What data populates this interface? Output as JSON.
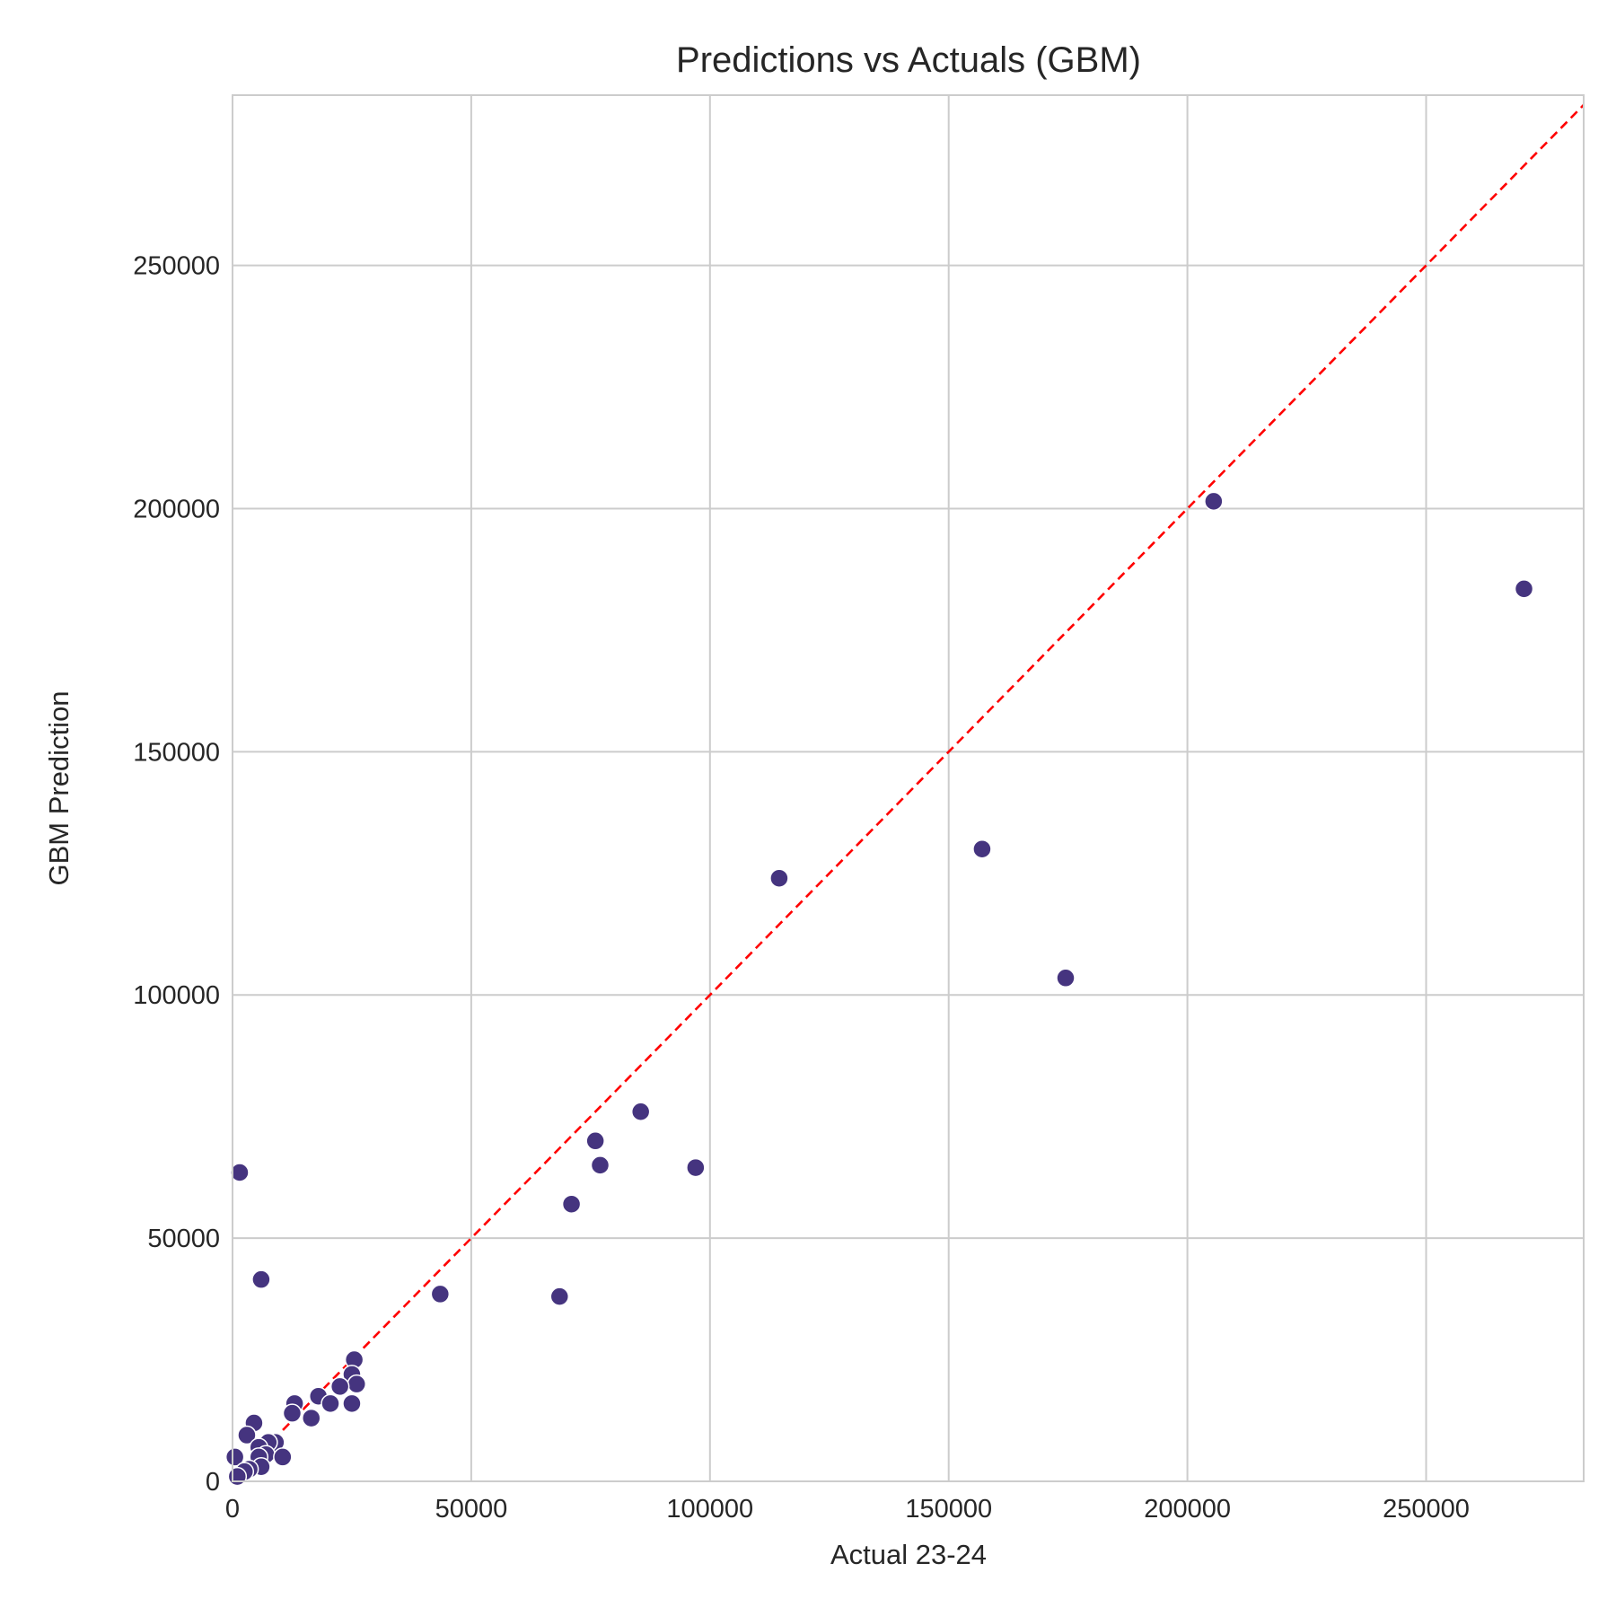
{
  "chart_data": {
    "type": "scatter",
    "title": "Predictions vs Actuals (GBM)",
    "xlabel": "Actual 23-24",
    "ylabel": "GBM Prediction",
    "xlim": [
      0,
      283000
    ],
    "ylim": [
      0,
      285000
    ],
    "xticks": [
      0,
      50000,
      100000,
      150000,
      200000,
      250000
    ],
    "yticks": [
      0,
      50000,
      100000,
      150000,
      200000,
      250000
    ],
    "xtick_labels": [
      "0",
      "50000",
      "100000",
      "150000",
      "200000",
      "250000"
    ],
    "ytick_labels": [
      "0",
      "50000",
      "100000",
      "150000",
      "200000",
      "250000"
    ],
    "grid": true,
    "marker_color": "#45347f",
    "marker_edge_color": "#ffffff",
    "reference_line": {
      "from": [
        0,
        0
      ],
      "to": [
        285000,
        285000
      ],
      "color": "#ff0000",
      "style": "dashed"
    },
    "points": [
      {
        "x": 205500,
        "y": 201500
      },
      {
        "x": 270500,
        "y": 183500
      },
      {
        "x": 157000,
        "y": 130000
      },
      {
        "x": 114500,
        "y": 124000
      },
      {
        "x": 174500,
        "y": 103500
      },
      {
        "x": 85500,
        "y": 76000
      },
      {
        "x": 76000,
        "y": 70000
      },
      {
        "x": 77000,
        "y": 65000
      },
      {
        "x": 97000,
        "y": 64500
      },
      {
        "x": 71000,
        "y": 57000
      },
      {
        "x": 68500,
        "y": 38000
      },
      {
        "x": 43500,
        "y": 38500
      },
      {
        "x": 1500,
        "y": 63500
      },
      {
        "x": 6000,
        "y": 41500
      },
      {
        "x": 25500,
        "y": 25000
      },
      {
        "x": 25000,
        "y": 22000
      },
      {
        "x": 26000,
        "y": 20000
      },
      {
        "x": 22500,
        "y": 19500
      },
      {
        "x": 18000,
        "y": 17500
      },
      {
        "x": 20500,
        "y": 16000
      },
      {
        "x": 25000,
        "y": 16000
      },
      {
        "x": 13000,
        "y": 16000
      },
      {
        "x": 12500,
        "y": 14000
      },
      {
        "x": 16500,
        "y": 13000
      },
      {
        "x": 4500,
        "y": 12000
      },
      {
        "x": 3000,
        "y": 9500
      },
      {
        "x": 9000,
        "y": 8000
      },
      {
        "x": 7500,
        "y": 8000
      },
      {
        "x": 5500,
        "y": 7000
      },
      {
        "x": 7000,
        "y": 5500
      },
      {
        "x": 5500,
        "y": 5000
      },
      {
        "x": 10500,
        "y": 5000
      },
      {
        "x": 500,
        "y": 5000
      },
      {
        "x": 6000,
        "y": 3000
      },
      {
        "x": 3500,
        "y": 2500
      },
      {
        "x": 2500,
        "y": 2000
      },
      {
        "x": 1000,
        "y": 1000
      }
    ]
  }
}
